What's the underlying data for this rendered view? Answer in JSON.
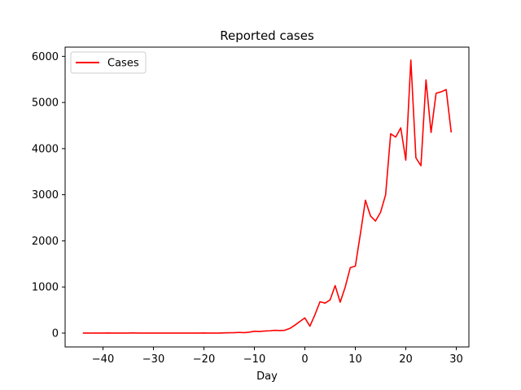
{
  "colors": {
    "series": "#ff0000",
    "axes": "#000000",
    "background": "#ffffff"
  },
  "chart_data": {
    "type": "line",
    "title": "Reported cases",
    "xlabel": "Day",
    "ylabel": "",
    "xlim": [
      -47.5,
      32.5
    ],
    "ylim": [
      -300,
      6200
    ],
    "xticks": [
      -40,
      -30,
      -20,
      -10,
      0,
      10,
      20,
      30
    ],
    "yticks": [
      0,
      1000,
      2000,
      3000,
      4000,
      5000,
      6000
    ],
    "grid": false,
    "legend": {
      "placement": "top-left",
      "entries": [
        "Cases"
      ]
    },
    "series": [
      {
        "name": "Cases",
        "color": "#ff0000",
        "x": [
          -44,
          -43,
          -42,
          -41,
          -40,
          -39,
          -38,
          -37,
          -36,
          -35,
          -34,
          -33,
          -32,
          -31,
          -30,
          -29,
          -28,
          -27,
          -26,
          -25,
          -24,
          -23,
          -22,
          -21,
          -20,
          -19,
          -18,
          -17,
          -16,
          -15,
          -14,
          -13,
          -12,
          -11,
          -10,
          -9,
          -8,
          -7,
          -6,
          -5,
          -4,
          -3,
          -2,
          -1,
          0,
          1,
          2,
          3,
          4,
          5,
          6,
          7,
          8,
          9,
          10,
          11,
          12,
          13,
          14,
          15,
          16,
          17,
          18,
          19,
          20,
          21,
          22,
          23,
          24,
          25,
          26,
          27,
          28,
          29
        ],
        "y": [
          0,
          0,
          0,
          0,
          0,
          2,
          0,
          0,
          0,
          0,
          5,
          0,
          0,
          0,
          0,
          0,
          0,
          0,
          0,
          0,
          0,
          0,
          0,
          0,
          3,
          0,
          0,
          0,
          5,
          8,
          10,
          15,
          10,
          20,
          40,
          35,
          45,
          50,
          60,
          55,
          60,
          100,
          170,
          250,
          330,
          150,
          400,
          680,
          650,
          720,
          1030,
          670,
          1000,
          1420,
          1450,
          2150,
          2880,
          2540,
          2430,
          2620,
          3000,
          4320,
          4250,
          4450,
          3750,
          5920,
          3800,
          3630,
          5490,
          4350,
          5200,
          5230,
          5280,
          4350
        ]
      }
    ]
  }
}
